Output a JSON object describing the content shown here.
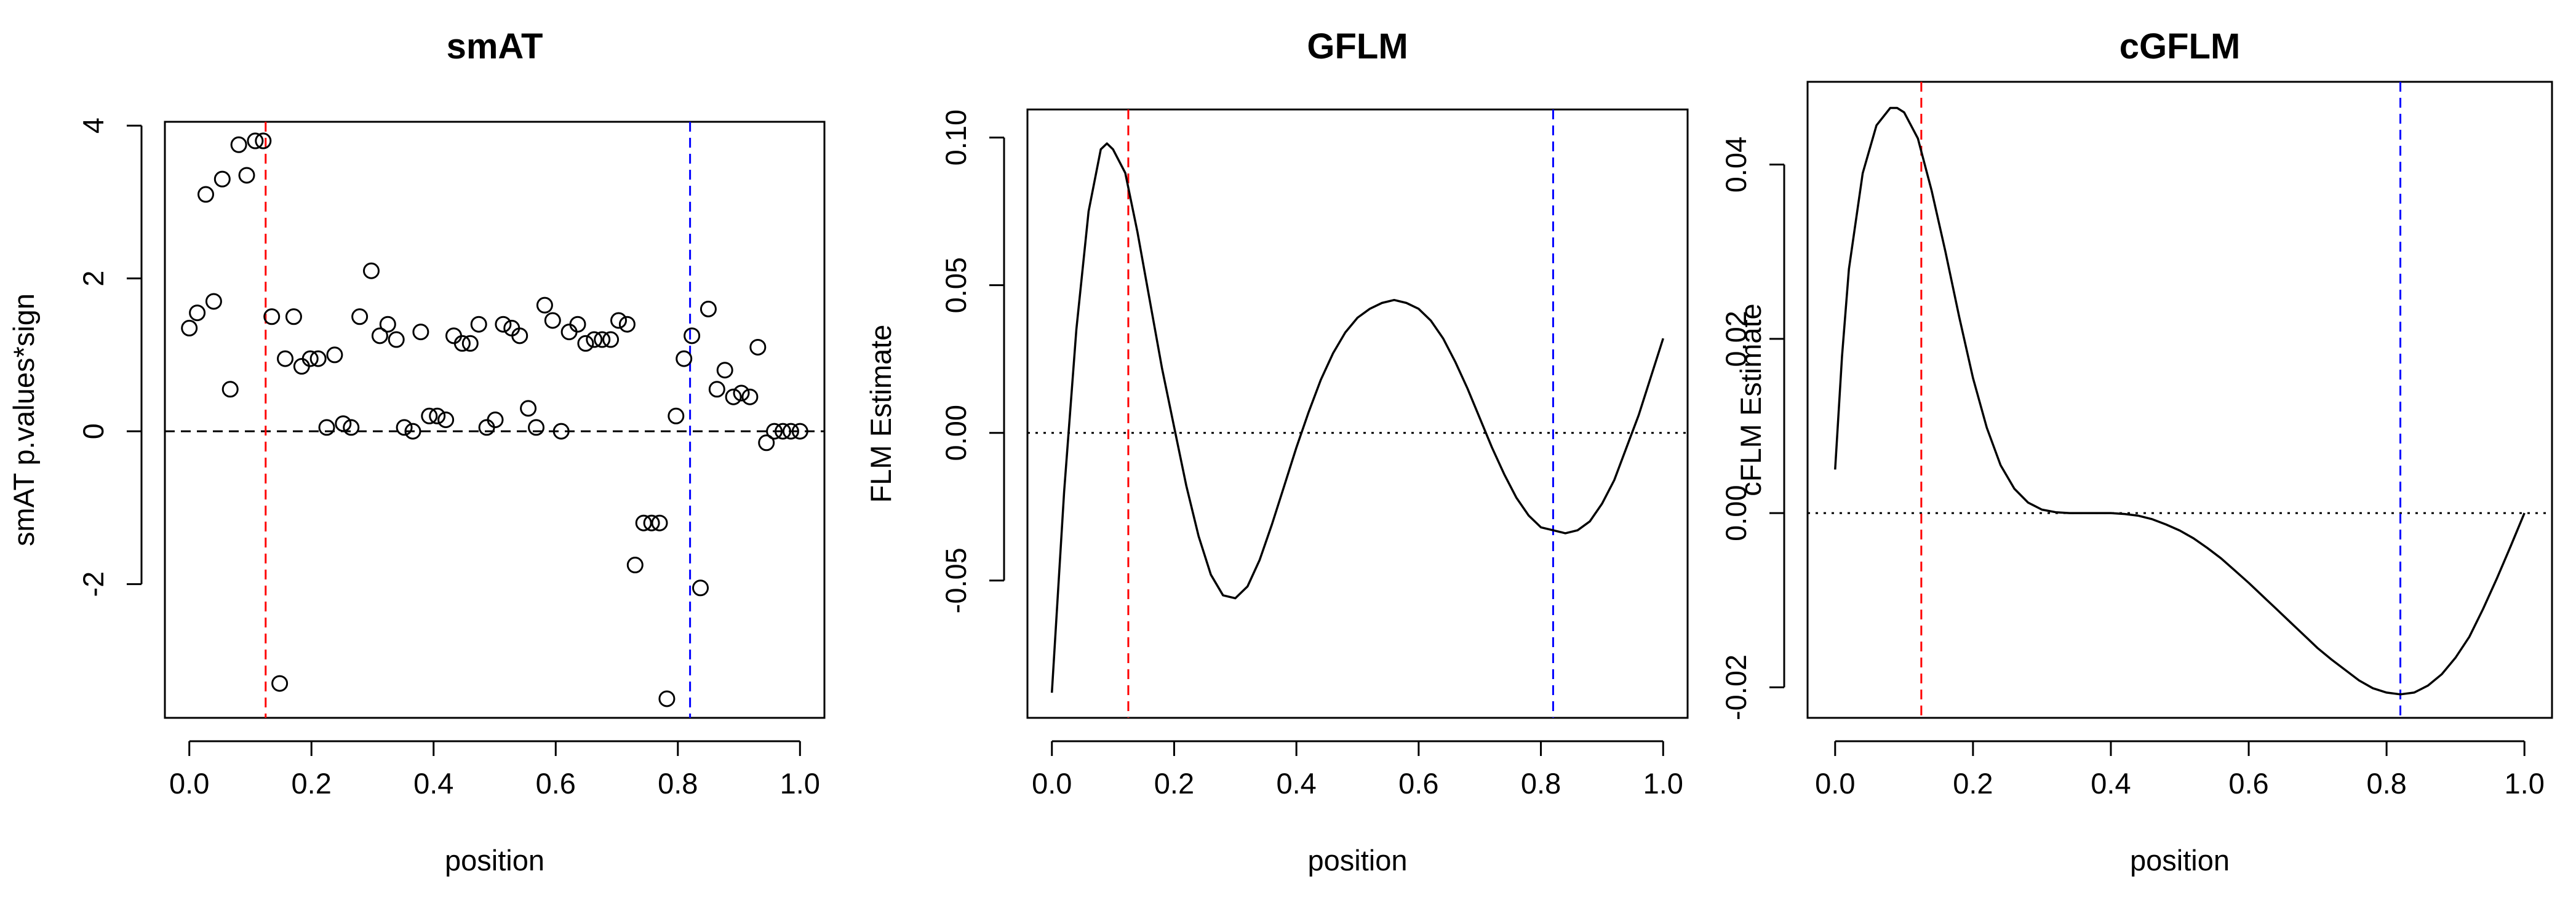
{
  "chart_data": [
    {
      "type": "scatter",
      "title": "smAT",
      "xlabel": "position",
      "ylabel": "smAT p.values*sign",
      "xlim": [
        -0.04,
        1.04
      ],
      "ylim": [
        -3.75,
        4.05
      ],
      "xticks": [
        0.0,
        0.2,
        0.4,
        0.6,
        0.8,
        1.0
      ],
      "xtick_labels": [
        "0.0",
        "0.2",
        "0.4",
        "0.6",
        "0.8",
        "1.0"
      ],
      "yticks": [
        -2,
        0,
        2,
        4
      ],
      "ytick_labels": [
        "-2",
        "0",
        "2",
        "4"
      ],
      "grid": false,
      "reference_lines": [
        {
          "axis": "y",
          "value": 0,
          "style": "dashed",
          "color": "#000000"
        },
        {
          "axis": "x",
          "value": 0.125,
          "style": "dashed",
          "color": "#ff0000"
        },
        {
          "axis": "x",
          "value": 0.82,
          "style": "dashed",
          "color": "#0000ff"
        }
      ],
      "series": [
        {
          "marker": "open-circle",
          "x": [
            0.0,
            0.013,
            0.027,
            0.04,
            0.054,
            0.067,
            0.081,
            0.094,
            0.108,
            0.121,
            0.135,
            0.148,
            0.157,
            0.171,
            0.184,
            0.198,
            0.211,
            0.225,
            0.238,
            0.252,
            0.265,
            0.279,
            0.298,
            0.312,
            0.325,
            0.339,
            0.352,
            0.366,
            0.379,
            0.393,
            0.406,
            0.42,
            0.433,
            0.447,
            0.46,
            0.474,
            0.487,
            0.501,
            0.514,
            0.528,
            0.541,
            0.555,
            0.568,
            0.582,
            0.595,
            0.609,
            0.622,
            0.636,
            0.649,
            0.663,
            0.676,
            0.69,
            0.703,
            0.717,
            0.73,
            0.744,
            0.757,
            0.77,
            0.782,
            0.797,
            0.81,
            0.823,
            0.837,
            0.85,
            0.864,
            0.877,
            0.891,
            0.904,
            0.918,
            0.931,
            0.945,
            0.958,
            0.972,
            0.985,
            1.0
          ],
          "y": [
            1.35,
            1.55,
            3.1,
            1.7,
            3.3,
            0.55,
            3.75,
            3.35,
            3.8,
            3.8,
            1.5,
            -3.3,
            0.95,
            1.5,
            0.85,
            0.95,
            0.95,
            0.05,
            1.0,
            0.1,
            0.05,
            1.5,
            2.1,
            1.25,
            1.4,
            1.2,
            0.05,
            0.0,
            1.3,
            0.2,
            0.2,
            0.15,
            1.25,
            1.15,
            1.15,
            1.4,
            0.05,
            0.15,
            1.4,
            1.35,
            1.25,
            0.3,
            0.05,
            1.65,
            1.45,
            0.0,
            1.3,
            1.4,
            1.15,
            1.2,
            1.2,
            1.2,
            1.45,
            1.4,
            -1.75,
            -1.2,
            -1.2,
            -1.2,
            -3.5,
            0.2,
            0.95,
            1.25,
            -2.05,
            1.6,
            0.55,
            0.8,
            0.45,
            0.5,
            0.45,
            1.1,
            -0.15,
            0.0,
            0.0,
            0.0,
            0.0
          ]
        }
      ]
    },
    {
      "type": "line",
      "title": "GFLM",
      "xlabel": "position",
      "ylabel": "FLM Estimate",
      "xlim": [
        -0.04,
        1.04
      ],
      "ylim": [
        -0.0965,
        0.1095
      ],
      "xticks": [
        0.0,
        0.2,
        0.4,
        0.6,
        0.8,
        1.0
      ],
      "xtick_labels": [
        "0.0",
        "0.2",
        "0.4",
        "0.6",
        "0.8",
        "1.0"
      ],
      "yticks": [
        -0.05,
        0.0,
        0.05,
        0.1
      ],
      "ytick_labels": [
        "-0.05",
        "0.00",
        "0.05",
        "0.10"
      ],
      "grid": false,
      "reference_lines": [
        {
          "axis": "y",
          "value": 0,
          "style": "dotted",
          "color": "#000000"
        },
        {
          "axis": "x",
          "value": 0.125,
          "style": "dashed",
          "color": "#ff0000"
        },
        {
          "axis": "x",
          "value": 0.82,
          "style": "dashed",
          "color": "#0000ff"
        }
      ],
      "series": [
        {
          "x": [
            0.0,
            0.02,
            0.04,
            0.06,
            0.08,
            0.09,
            0.1,
            0.12,
            0.14,
            0.16,
            0.18,
            0.2,
            0.22,
            0.24,
            0.26,
            0.28,
            0.3,
            0.32,
            0.34,
            0.36,
            0.38,
            0.4,
            0.42,
            0.44,
            0.46,
            0.48,
            0.5,
            0.52,
            0.54,
            0.56,
            0.58,
            0.6,
            0.62,
            0.64,
            0.66,
            0.68,
            0.7,
            0.72,
            0.74,
            0.76,
            0.78,
            0.8,
            0.82,
            0.84,
            0.86,
            0.88,
            0.9,
            0.92,
            0.94,
            0.96,
            0.98,
            1.0
          ],
          "y": [
            -0.088,
            -0.02,
            0.035,
            0.075,
            0.096,
            0.098,
            0.096,
            0.088,
            0.068,
            0.045,
            0.022,
            0.002,
            -0.018,
            -0.035,
            -0.048,
            -0.055,
            -0.056,
            -0.052,
            -0.043,
            -0.031,
            -0.018,
            -0.005,
            0.007,
            0.018,
            0.027,
            0.034,
            0.039,
            0.042,
            0.044,
            0.045,
            0.044,
            0.042,
            0.038,
            0.032,
            0.024,
            0.015,
            0.005,
            -0.005,
            -0.014,
            -0.022,
            -0.028,
            -0.032,
            -0.033,
            -0.034,
            -0.033,
            -0.03,
            -0.024,
            -0.016,
            -0.005,
            0.006,
            0.019,
            0.032
          ]
        }
      ]
    },
    {
      "type": "line",
      "title": "cGFLM",
      "xlabel": "position",
      "ylabel": "cFLM Estimate",
      "xlim": [
        -0.04,
        1.04
      ],
      "ylim": [
        -0.0235,
        0.0495
      ],
      "xticks": [
        0.0,
        0.2,
        0.4,
        0.6,
        0.8,
        1.0
      ],
      "xtick_labels": [
        "0.0",
        "0.2",
        "0.4",
        "0.6",
        "0.8",
        "1.0"
      ],
      "yticks": [
        -0.02,
        0.0,
        0.02,
        0.04
      ],
      "ytick_labels": [
        "-0.02",
        "0.00",
        "0.02",
        "0.04"
      ],
      "grid": false,
      "reference_lines": [
        {
          "axis": "y",
          "value": 0,
          "style": "dotted",
          "color": "#000000"
        },
        {
          "axis": "x",
          "value": 0.125,
          "style": "dashed",
          "color": "#ff0000"
        },
        {
          "axis": "x",
          "value": 0.82,
          "style": "dashed",
          "color": "#0000ff"
        }
      ],
      "series": [
        {
          "x": [
            0.0,
            0.01,
            0.02,
            0.04,
            0.06,
            0.08,
            0.09,
            0.1,
            0.12,
            0.14,
            0.16,
            0.18,
            0.2,
            0.22,
            0.24,
            0.26,
            0.28,
            0.3,
            0.32,
            0.34,
            0.36,
            0.38,
            0.4,
            0.42,
            0.44,
            0.46,
            0.48,
            0.5,
            0.52,
            0.54,
            0.56,
            0.58,
            0.6,
            0.62,
            0.64,
            0.66,
            0.68,
            0.7,
            0.72,
            0.74,
            0.76,
            0.78,
            0.8,
            0.82,
            0.84,
            0.86,
            0.88,
            0.9,
            0.92,
            0.94,
            0.96,
            0.98,
            1.0
          ],
          "y": [
            0.005,
            0.018,
            0.028,
            0.039,
            0.0445,
            0.0465,
            0.0465,
            0.046,
            0.043,
            0.037,
            0.03,
            0.0225,
            0.0155,
            0.0098,
            0.0055,
            0.0028,
            0.0012,
            0.0004,
            0.0001,
            0.0,
            0.0,
            0.0,
            0.0,
            -0.0001,
            -0.0003,
            -0.0007,
            -0.0013,
            -0.002,
            -0.0029,
            -0.004,
            -0.0052,
            -0.0066,
            -0.008,
            -0.0095,
            -0.011,
            -0.0125,
            -0.014,
            -0.0155,
            -0.0168,
            -0.018,
            -0.0192,
            -0.0201,
            -0.0206,
            -0.0208,
            -0.0206,
            -0.0198,
            -0.0185,
            -0.0166,
            -0.0142,
            -0.011,
            -0.0075,
            -0.0038,
            0.0
          ]
        }
      ]
    }
  ]
}
